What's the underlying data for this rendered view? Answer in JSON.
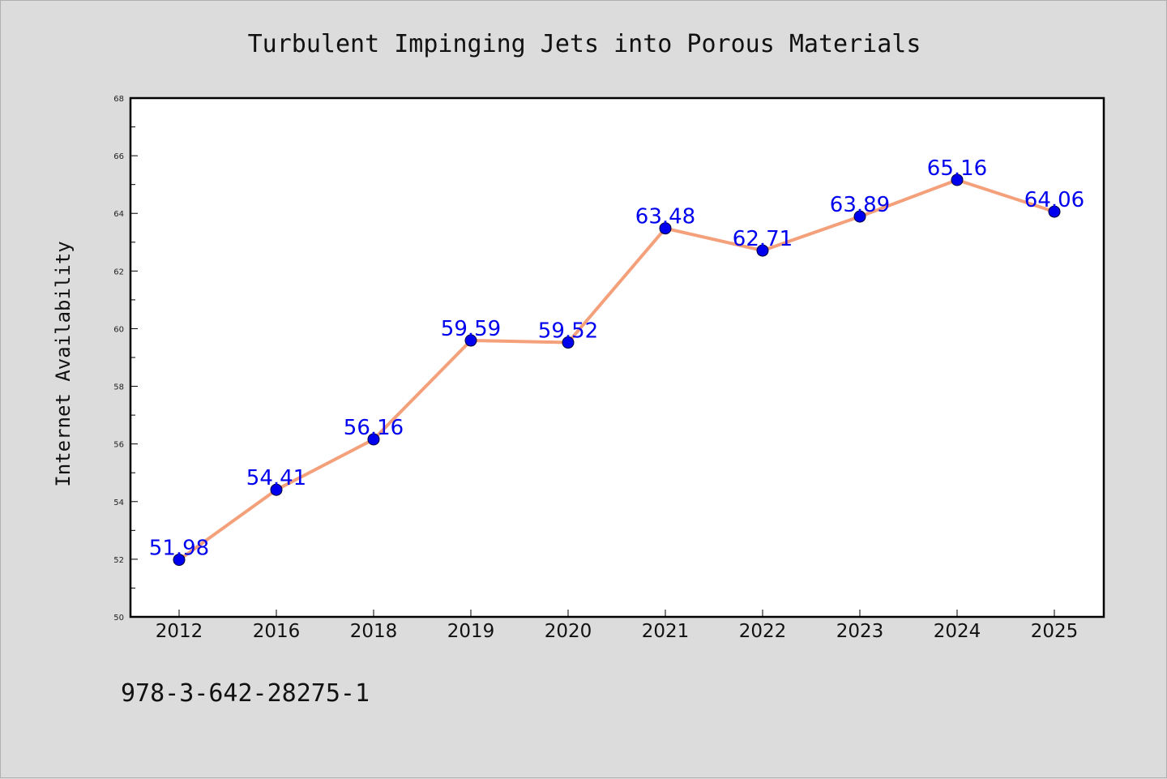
{
  "chart_data": {
    "type": "line",
    "title": "Turbulent Impinging Jets into Porous Materials",
    "xlabel": "",
    "ylabel": "Internet Availability",
    "categories": [
      "2012",
      "2016",
      "2018",
      "2019",
      "2020",
      "2021",
      "2022",
      "2023",
      "2024",
      "2025"
    ],
    "values": [
      51.98,
      54.41,
      56.16,
      59.59,
      59.52,
      63.48,
      62.71,
      63.89,
      65.16,
      64.06
    ],
    "data_labels": [
      "51.98",
      "54.41",
      "56.16",
      "59.59",
      "59.52",
      "63.48",
      "62.71",
      "63.89",
      "65.16",
      "64.06"
    ],
    "ylim": [
      50,
      68
    ],
    "yticks": [
      "50",
      "52",
      "54",
      "56",
      "58",
      "60",
      "62",
      "64",
      "66",
      "68"
    ],
    "grid": false,
    "legend": "none",
    "colors": {
      "line": "#f4a07a",
      "marker": "#0000ee",
      "label": "#0000ee",
      "background": "#dcdcdc",
      "plot_area": "#ffffff"
    }
  },
  "footer": {
    "isbn": "978-3-642-28275-1"
  }
}
